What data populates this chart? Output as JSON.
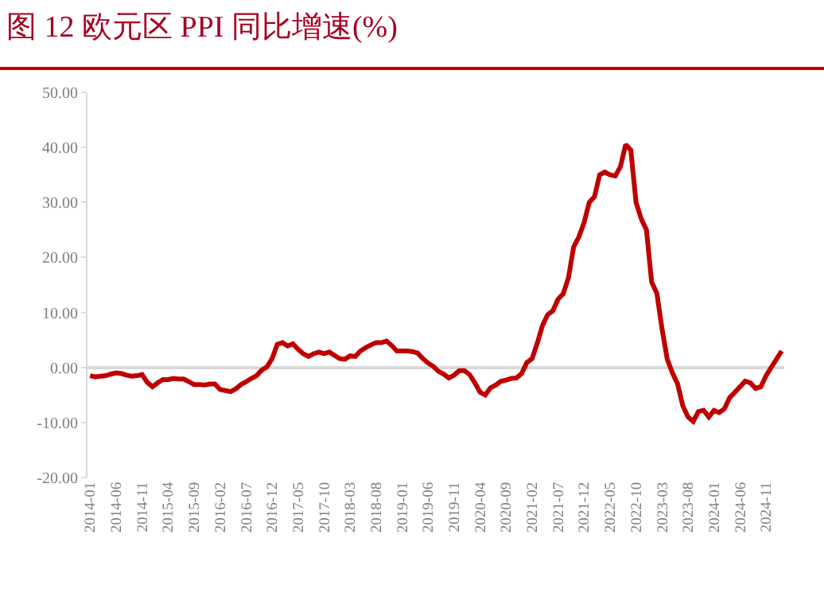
{
  "chart_data": {
    "type": "line",
    "title": "图 12 欧元区 PPI 同比增速(%)",
    "categories": [
      "2014-01",
      null,
      null,
      null,
      null,
      "2014-06",
      null,
      null,
      null,
      null,
      "2014-11",
      null,
      null,
      null,
      null,
      "2015-04",
      null,
      null,
      null,
      null,
      "2015-09",
      null,
      null,
      null,
      null,
      "2016-02",
      null,
      null,
      null,
      null,
      "2016-07",
      null,
      null,
      null,
      null,
      "2016-12",
      null,
      null,
      null,
      null,
      "2017-05",
      null,
      null,
      null,
      null,
      "2017-10",
      null,
      null,
      null,
      null,
      "2018-03",
      null,
      null,
      null,
      null,
      "2018-08",
      null,
      null,
      null,
      null,
      "2019-01",
      null,
      null,
      null,
      null,
      "2019-06",
      null,
      null,
      null,
      null,
      "2019-11",
      null,
      null,
      null,
      null,
      "2020-04",
      null,
      null,
      null,
      null,
      "2020-09",
      null,
      null,
      null,
      null,
      "2021-02",
      null,
      null,
      null,
      null,
      "2021-07",
      null,
      null,
      null,
      null,
      "2021-12",
      null,
      null,
      null,
      null,
      "2022-05",
      null,
      null,
      null,
      null,
      "2022-10",
      null,
      null,
      null,
      null,
      "2023-03",
      null,
      null,
      null,
      null,
      "2023-08",
      null,
      null,
      null,
      null,
      "2024-01",
      null,
      null,
      null,
      null,
      "2024-06",
      null,
      null,
      null,
      null,
      "2024-11",
      null,
      null,
      null
    ],
    "series": [
      {
        "color": "#c00000",
        "values": [
          -1.5,
          -1.7,
          -1.6,
          -1.5,
          -1.2,
          -1.0,
          -1.1,
          -1.4,
          -1.6,
          -1.5,
          -1.3,
          -2.7,
          -3.5,
          -2.8,
          -2.2,
          -2.2,
          -2.0,
          -2.1,
          -2.1,
          -2.6,
          -3.1,
          -3.1,
          -3.2,
          -3.0,
          -3.0,
          -4.0,
          -4.2,
          -4.4,
          -3.9,
          -3.1,
          -2.6,
          -2.0,
          -1.5,
          -0.5,
          0.1,
          1.6,
          4.2,
          4.5,
          3.9,
          4.3,
          3.3,
          2.5,
          2.0,
          2.5,
          2.8,
          2.5,
          2.8,
          2.2,
          1.6,
          1.5,
          2.1,
          2.0,
          3.0,
          3.6,
          4.1,
          4.5,
          4.5,
          4.8,
          4.0,
          3.0,
          3.0,
          3.0,
          2.9,
          2.6,
          1.6,
          0.8,
          0.2,
          -0.7,
          -1.2,
          -1.9,
          -1.4,
          -0.6,
          -0.6,
          -1.3,
          -2.8,
          -4.5,
          -5.0,
          -3.7,
          -3.2,
          -2.5,
          -2.3,
          -2.0,
          -1.9,
          -1.1,
          0.9,
          1.6,
          4.4,
          7.6,
          9.6,
          10.3,
          12.4,
          13.4,
          16.3,
          21.9,
          23.7,
          26.3,
          30.0,
          31.0,
          35.0,
          35.5,
          35.0,
          34.8,
          36.5,
          40.5,
          39.5,
          30.0,
          27.0,
          25.0,
          15.5,
          13.5,
          7.0,
          1.5,
          -1.0,
          -3.0,
          -7.0,
          -9.0,
          -9.8,
          -8.0,
          -7.8,
          -9.0,
          -7.8,
          -8.2,
          -7.5,
          -5.5,
          -4.5,
          -3.5,
          -2.5,
          -2.8,
          -3.8,
          -3.5,
          -1.5,
          0.0,
          1.5,
          3.0
        ]
      }
    ],
    "ylim": [
      -20,
      50
    ],
    "yticks": [
      {
        "value": -20,
        "label": "-20.00"
      },
      {
        "value": -10,
        "label": "-10.00"
      },
      {
        "value": 0,
        "label": "0.00"
      },
      {
        "value": 10,
        "label": "10.00"
      },
      {
        "value": 20,
        "label": "20.00"
      },
      {
        "value": 30,
        "label": "30.00"
      },
      {
        "value": 40,
        "label": "40.00"
      },
      {
        "value": 50,
        "label": "50.00"
      }
    ]
  }
}
